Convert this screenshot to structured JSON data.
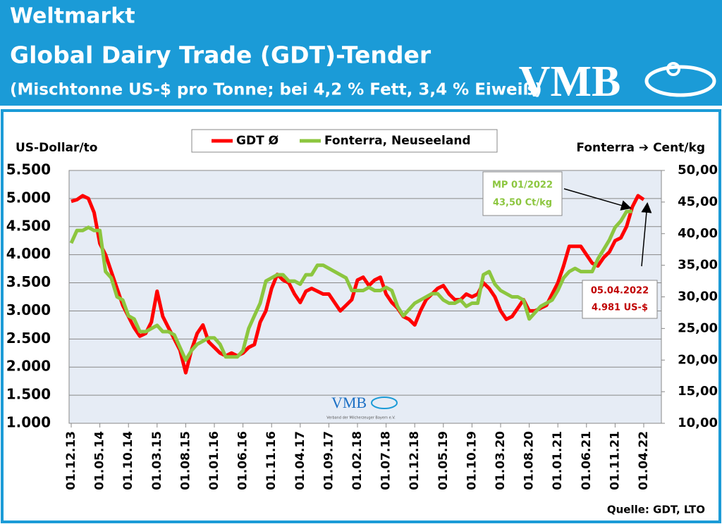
{
  "header": {
    "title": "Weltmarkt",
    "subtitle": "Global Dairy Trade (GDT)-Tender",
    "note": "(Mischtonne US-$ pro Tonne; bei 4,2 % Fett, 3,4 % Eiweiß)",
    "logo": "VMB"
  },
  "chart_data": {
    "type": "line",
    "ylabel": "US-Dollar/to",
    "y2label": "Fonterra ➔ Cent/kg",
    "categories": [
      "01.12.13",
      null,
      null,
      null,
      null,
      "01.05.14",
      null,
      null,
      null,
      null,
      "01.10.14",
      null,
      null,
      null,
      null,
      "01.03.15",
      null,
      null,
      null,
      null,
      "01.08.15",
      null,
      null,
      null,
      null,
      "01.01.16",
      null,
      null,
      null,
      null,
      "01.06.16",
      null,
      null,
      null,
      null,
      "01.11.16",
      null,
      null,
      null,
      null,
      "01.04.17",
      null,
      null,
      null,
      null,
      "01.09.17",
      null,
      null,
      null,
      null,
      "01.02.18",
      null,
      null,
      null,
      null,
      "01.07.18",
      null,
      null,
      null,
      null,
      "01.12.18",
      null,
      null,
      null,
      null,
      "01.05.19",
      null,
      null,
      null,
      null,
      "01.10.19",
      null,
      null,
      null,
      null,
      "01.03.20",
      null,
      null,
      null,
      null,
      "01.08.20",
      null,
      null,
      null,
      null,
      "01.01.21",
      null,
      null,
      null,
      null,
      "01.06.21",
      null,
      null,
      null,
      null,
      "01.11.21",
      null,
      null,
      null,
      null,
      "01.04.22"
    ],
    "series": [
      {
        "name": "GDT Ø",
        "color": "#ff0000",
        "values": [
          4950,
          4980,
          5050,
          5000,
          4750,
          4200,
          4000,
          3700,
          3400,
          3100,
          2900,
          2700,
          2550,
          2600,
          2800,
          3350,
          2900,
          2700,
          2500,
          2300,
          1900,
          2300,
          2600,
          2750,
          2450,
          2350,
          2250,
          2200,
          2250,
          2200,
          2250,
          2350,
          2400,
          2800,
          3000,
          3400,
          3650,
          3550,
          3500,
          3300,
          3150,
          3350,
          3400,
          3350,
          3300,
          3300,
          3150,
          3000,
          3100,
          3200,
          3550,
          3600,
          3450,
          3550,
          3600,
          3300,
          3150,
          3050,
          2900,
          2850,
          2750,
          3000,
          3200,
          3300,
          3400,
          3450,
          3300,
          3200,
          3200,
          3300,
          3250,
          3300,
          3500,
          3400,
          3250,
          3000,
          2850,
          2900,
          3050,
          3200,
          3000,
          3000,
          3050,
          3100,
          3300,
          3500,
          3800,
          4150,
          4150,
          4150,
          4000,
          3850,
          3800,
          3950,
          4050,
          4250,
          4300,
          4500,
          4850,
          5050,
          4981
        ]
      },
      {
        "name": "Fonterra, Neuseeland",
        "color": "#8cc63f",
        "axis": "y2",
        "values": [
          38.5,
          40.5,
          40.5,
          41,
          40.5,
          40.5,
          34,
          33,
          30,
          29.5,
          27,
          26.5,
          24.5,
          24.5,
          25,
          25.5,
          24.5,
          24.5,
          24,
          22,
          20,
          21.5,
          22.5,
          23,
          23.5,
          23.5,
          22.5,
          20.5,
          20.5,
          20.5,
          21.5,
          25,
          27,
          29,
          32.5,
          33,
          33.5,
          33.5,
          32.5,
          32.5,
          32,
          33.5,
          33.5,
          35,
          35,
          34.5,
          34,
          33.5,
          33,
          31,
          31,
          31,
          31.5,
          31,
          31,
          31.5,
          31,
          28.5,
          27,
          28,
          29,
          29.5,
          30,
          30.5,
          30.5,
          29.5,
          29,
          29,
          29.5,
          28.5,
          29,
          29,
          33.5,
          34,
          32,
          31,
          30.5,
          30,
          30,
          29.5,
          26.5,
          27.5,
          28.5,
          29,
          29.5,
          31,
          33,
          34,
          34.5,
          34,
          34,
          34,
          36,
          37.5,
          39,
          41,
          42,
          43.5,
          43.5,
          null,
          null
        ]
      }
    ],
    "ylim": [
      1000,
      5500
    ],
    "yticks": [
      {
        "value": 1000,
        "label": "1.000"
      },
      {
        "value": 1500,
        "label": "1.500"
      },
      {
        "value": 2000,
        "label": "2.000"
      },
      {
        "value": 2500,
        "label": "2.500"
      },
      {
        "value": 3000,
        "label": "3.000"
      },
      {
        "value": 3500,
        "label": "3.500"
      },
      {
        "value": 4000,
        "label": "4.000"
      },
      {
        "value": 4500,
        "label": "4.500"
      },
      {
        "value": 5000,
        "label": "5.000"
      },
      {
        "value": 5500,
        "label": "5.500"
      }
    ],
    "y2lim": [
      10,
      50
    ],
    "y2ticks": [
      {
        "value": 10,
        "label": "10,00"
      },
      {
        "value": 15,
        "label": "15,00"
      },
      {
        "value": 20,
        "label": "20,00"
      },
      {
        "value": 25,
        "label": "25,00"
      },
      {
        "value": 30,
        "label": "30,00"
      },
      {
        "value": 35,
        "label": "35,00"
      },
      {
        "value": 40,
        "label": "40,00"
      },
      {
        "value": 45,
        "label": "45,00"
      },
      {
        "value": 50,
        "label": "50,00"
      }
    ],
    "grid": true,
    "legend": "top",
    "annotations": [
      {
        "title": "MP 01/2022",
        "text": "43,50 Ct/kg"
      },
      {
        "title": "05.04.2022",
        "text": "4.981 US-$"
      }
    ],
    "watermark": {
      "logo": "VMB",
      "text": "Verband der Milcherzeuger Bayern e.V."
    },
    "source": "Quelle: GDT, LTO"
  }
}
